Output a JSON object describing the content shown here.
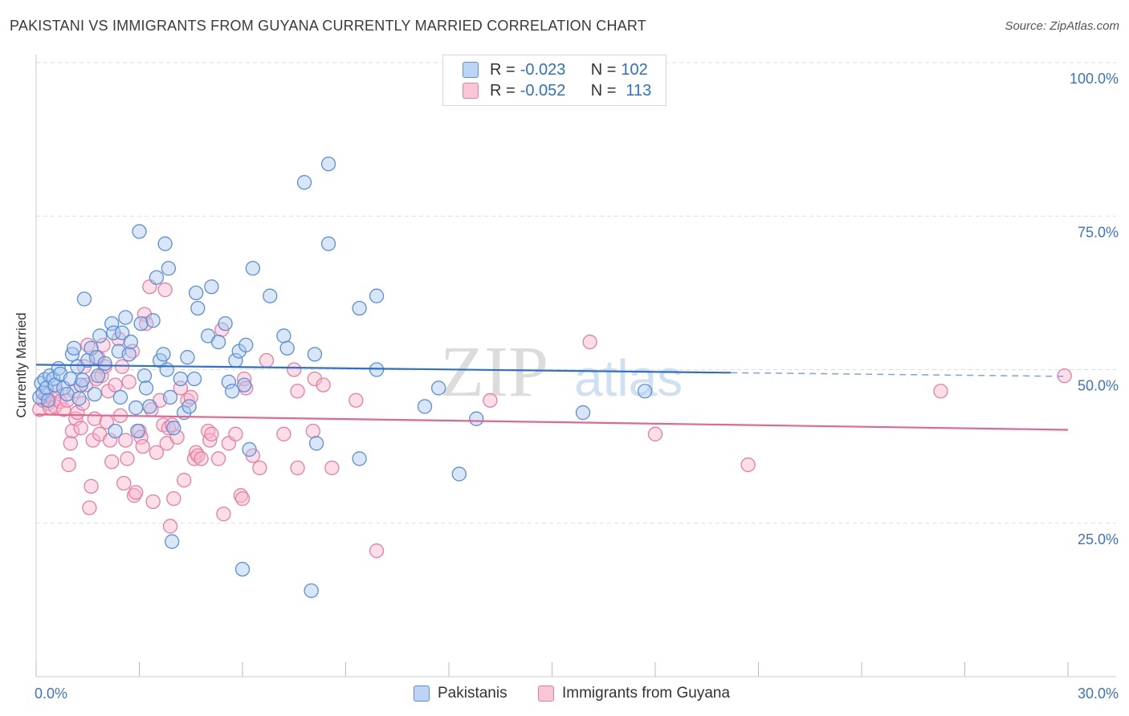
{
  "title": "PAKISTANI VS IMMIGRANTS FROM GUYANA CURRENTLY MARRIED CORRELATION CHART",
  "source": "Source: ZipAtlas.com",
  "watermark": {
    "zip": "ZIP",
    "atlas": "atlas"
  },
  "legend": {
    "rows": [
      {
        "r_key": "R = ",
        "r_value": "-0.023",
        "n_key": "N = ",
        "n_value": "102"
      },
      {
        "r_key": "R = ",
        "r_value": "-0.052",
        "n_key": "N = ",
        "n_value": "113"
      }
    ]
  },
  "colors": {
    "blue_fill": "#a9c8f0",
    "blue_stroke": "#5b8fd6",
    "blue_line": "#2e6fd0",
    "pink_fill": "#f6b6cb",
    "pink_stroke": "#e77ea0",
    "pink_line": "#e0678f",
    "grid": "#dddddd",
    "axis_text": "#3b73c9"
  },
  "chart_data": {
    "type": "scatter",
    "title": "PAKISTANI VS IMMIGRANTS FROM GUYANA CURRENTLY MARRIED CORRELATION CHART",
    "xlabel": "",
    "ylabel": "Currently Married",
    "xlim": [
      0,
      30
    ],
    "ylim": [
      0,
      100
    ],
    "x_tick_labels": [
      "0.0%",
      "30.0%"
    ],
    "y_tick_labels": [
      "25.0%",
      "50.0%",
      "75.0%",
      "100.0%"
    ],
    "y_ticks": [
      25,
      50,
      75,
      100
    ],
    "grid": true,
    "legend_position": "top-center",
    "series": [
      {
        "name": "Pakistanis",
        "trend": {
          "x": [
            0,
            20.2
          ],
          "y": [
            50.8,
            49.5
          ],
          "dashed_to": [
            30,
            48.9
          ]
        },
        "points": [
          [
            0.1,
            45.5
          ],
          [
            0.15,
            47.8
          ],
          [
            0.2,
            46.2
          ],
          [
            0.25,
            48.4
          ],
          [
            0.3,
            47.0
          ],
          [
            0.35,
            45.0
          ],
          [
            0.4,
            49.0
          ],
          [
            0.5,
            48.5
          ],
          [
            0.55,
            47.5
          ],
          [
            0.65,
            50.2
          ],
          [
            0.7,
            49.3
          ],
          [
            0.8,
            47.0
          ],
          [
            0.9,
            46.0
          ],
          [
            1.0,
            48.5
          ],
          [
            1.05,
            52.5
          ],
          [
            1.1,
            53.5
          ],
          [
            1.2,
            50.5
          ],
          [
            1.25,
            45.3
          ],
          [
            1.3,
            47.5
          ],
          [
            1.35,
            48.3
          ],
          [
            1.4,
            61.5
          ],
          [
            1.5,
            51.5
          ],
          [
            1.6,
            53.5
          ],
          [
            1.7,
            46.0
          ],
          [
            1.75,
            52.0
          ],
          [
            1.8,
            49.0
          ],
          [
            1.85,
            55.5
          ],
          [
            2.0,
            51.0
          ],
          [
            2.2,
            57.5
          ],
          [
            2.25,
            56.0
          ],
          [
            2.3,
            40.0
          ],
          [
            2.4,
            53.0
          ],
          [
            2.45,
            45.5
          ],
          [
            2.5,
            56.0
          ],
          [
            2.6,
            58.5
          ],
          [
            2.7,
            52.5
          ],
          [
            2.75,
            54.5
          ],
          [
            2.9,
            43.8
          ],
          [
            2.95,
            40.0
          ],
          [
            3.0,
            72.5
          ],
          [
            3.05,
            57.5
          ],
          [
            3.15,
            49.0
          ],
          [
            3.2,
            47.0
          ],
          [
            3.3,
            44.0
          ],
          [
            3.4,
            58.0
          ],
          [
            3.5,
            65.0
          ],
          [
            3.6,
            51.5
          ],
          [
            3.7,
            52.5
          ],
          [
            3.75,
            70.5
          ],
          [
            3.8,
            50.0
          ],
          [
            3.85,
            66.5
          ],
          [
            3.9,
            45.5
          ],
          [
            3.95,
            22.0
          ],
          [
            4.0,
            40.5
          ],
          [
            4.2,
            48.5
          ],
          [
            4.3,
            43.0
          ],
          [
            4.4,
            52.0
          ],
          [
            4.45,
            44.0
          ],
          [
            4.6,
            48.5
          ],
          [
            4.65,
            62.5
          ],
          [
            4.7,
            60.0
          ],
          [
            5.0,
            55.5
          ],
          [
            5.1,
            63.5
          ],
          [
            5.3,
            54.5
          ],
          [
            5.5,
            57.5
          ],
          [
            5.6,
            48.0
          ],
          [
            5.7,
            46.5
          ],
          [
            5.8,
            51.5
          ],
          [
            5.9,
            53.0
          ],
          [
            6.0,
            17.5
          ],
          [
            6.05,
            47.5
          ],
          [
            6.1,
            54.0
          ],
          [
            6.2,
            37.0
          ],
          [
            6.3,
            66.5
          ],
          [
            6.8,
            62.0
          ],
          [
            7.2,
            55.5
          ],
          [
            7.3,
            53.5
          ],
          [
            7.8,
            80.5
          ],
          [
            8.1,
            52.5
          ],
          [
            8.15,
            38.0
          ],
          [
            8.0,
            14.0
          ],
          [
            8.5,
            83.5
          ],
          [
            8.5,
            70.5
          ],
          [
            9.4,
            35.5
          ],
          [
            9.4,
            60.0
          ],
          [
            9.9,
            62.0
          ],
          [
            9.9,
            50.0
          ],
          [
            11.3,
            44.0
          ],
          [
            11.7,
            47.0
          ],
          [
            12.3,
            33.0
          ],
          [
            12.8,
            42.0
          ],
          [
            15.9,
            43.0
          ],
          [
            17.7,
            46.5
          ]
        ]
      },
      {
        "name": "Immigrants from Guyana",
        "trend": {
          "x": [
            0,
            30
          ],
          "y": [
            42.7,
            40.2
          ]
        },
        "points": [
          [
            0.1,
            43.5
          ],
          [
            0.2,
            45.0
          ],
          [
            0.3,
            46.0
          ],
          [
            0.35,
            44.5
          ],
          [
            0.4,
            43.8
          ],
          [
            0.5,
            45.2
          ],
          [
            0.55,
            44.0
          ],
          [
            0.6,
            46.5
          ],
          [
            0.7,
            44.8
          ],
          [
            0.8,
            43.5
          ],
          [
            0.9,
            45.0
          ],
          [
            0.95,
            34.5
          ],
          [
            1.0,
            38.0
          ],
          [
            1.05,
            40.0
          ],
          [
            1.1,
            46.5
          ],
          [
            1.15,
            42.0
          ],
          [
            1.2,
            43.0
          ],
          [
            1.3,
            40.5
          ],
          [
            1.35,
            44.5
          ],
          [
            1.4,
            50.5
          ],
          [
            1.45,
            47.5
          ],
          [
            1.5,
            54.0
          ],
          [
            1.55,
            27.5
          ],
          [
            1.6,
            31.0
          ],
          [
            1.65,
            38.5
          ],
          [
            1.7,
            42.0
          ],
          [
            1.75,
            48.5
          ],
          [
            1.8,
            52.0
          ],
          [
            1.85,
            39.5
          ],
          [
            1.9,
            49.0
          ],
          [
            1.95,
            54.0
          ],
          [
            2.0,
            50.5
          ],
          [
            2.05,
            41.5
          ],
          [
            2.1,
            46.5
          ],
          [
            2.15,
            38.5
          ],
          [
            2.2,
            35.0
          ],
          [
            2.3,
            47.5
          ],
          [
            2.4,
            55.0
          ],
          [
            2.45,
            42.5
          ],
          [
            2.5,
            50.5
          ],
          [
            2.55,
            31.5
          ],
          [
            2.6,
            38.5
          ],
          [
            2.65,
            35.5
          ],
          [
            2.7,
            48.0
          ],
          [
            2.8,
            53.0
          ],
          [
            2.85,
            29.5
          ],
          [
            2.9,
            30.0
          ],
          [
            3.0,
            40.0
          ],
          [
            3.05,
            39.0
          ],
          [
            3.1,
            37.5
          ],
          [
            3.15,
            59.0
          ],
          [
            3.2,
            57.5
          ],
          [
            3.3,
            63.5
          ],
          [
            3.35,
            43.5
          ],
          [
            3.4,
            28.5
          ],
          [
            3.5,
            36.5
          ],
          [
            3.6,
            45.0
          ],
          [
            3.7,
            41.0
          ],
          [
            3.75,
            63.0
          ],
          [
            3.8,
            38.0
          ],
          [
            3.85,
            40.5
          ],
          [
            3.9,
            24.5
          ],
          [
            3.95,
            41.0
          ],
          [
            4.0,
            29.0
          ],
          [
            4.1,
            39.0
          ],
          [
            4.2,
            47.0
          ],
          [
            4.3,
            32.0
          ],
          [
            4.4,
            45.0
          ],
          [
            4.5,
            45.5
          ],
          [
            4.6,
            35.5
          ],
          [
            4.65,
            36.5
          ],
          [
            4.7,
            36.0
          ],
          [
            4.8,
            35.5
          ],
          [
            5.0,
            40.0
          ],
          [
            5.05,
            38.5
          ],
          [
            5.1,
            39.5
          ],
          [
            5.3,
            35.5
          ],
          [
            5.4,
            56.5
          ],
          [
            5.45,
            26.5
          ],
          [
            5.6,
            38.0
          ],
          [
            5.8,
            39.5
          ],
          [
            5.95,
            29.5
          ],
          [
            6.0,
            29.0
          ],
          [
            6.05,
            48.5
          ],
          [
            6.1,
            47.0
          ],
          [
            6.3,
            36.0
          ],
          [
            6.5,
            34.0
          ],
          [
            6.7,
            51.5
          ],
          [
            7.2,
            39.5
          ],
          [
            7.5,
            50.0
          ],
          [
            7.6,
            34.0
          ],
          [
            7.6,
            46.5
          ],
          [
            8.05,
            40.0
          ],
          [
            8.1,
            48.5
          ],
          [
            8.35,
            47.5
          ],
          [
            8.6,
            34.0
          ],
          [
            9.3,
            45.0
          ],
          [
            9.9,
            20.5
          ],
          [
            13.2,
            45.0
          ],
          [
            16.1,
            54.5
          ],
          [
            18.0,
            39.5
          ],
          [
            20.7,
            34.5
          ],
          [
            26.3,
            46.5
          ],
          [
            29.9,
            49.0
          ]
        ]
      }
    ]
  }
}
